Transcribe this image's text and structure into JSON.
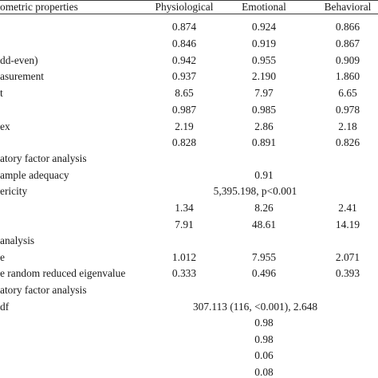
{
  "header": {
    "property": "ometric properties",
    "physiological": "Physiological",
    "emotional": "Emotional",
    "behavioral": "Behavioral"
  },
  "rows": [
    {
      "label": "",
      "phys": "0.874",
      "emo": "0.924",
      "beh": "0.866"
    },
    {
      "label": "",
      "phys": "0.846",
      "emo": "0.919",
      "beh": "0.867"
    },
    {
      "label": "dd-even)",
      "phys": "0.942",
      "emo": "0.955",
      "beh": "0.909"
    },
    {
      "label": "asurement",
      "phys": "0.937",
      "emo": "2.190",
      "beh": "1.860"
    },
    {
      "label": "t",
      "phys": "8.65",
      "emo": "7.97",
      "beh": "6.65"
    },
    {
      "label": "",
      "phys": "0.987",
      "emo": "0.985",
      "beh": "0.978"
    },
    {
      "label": "ex",
      "phys": "2.19",
      "emo": "2.86",
      "beh": "2.18"
    },
    {
      "label": "",
      "phys": "0.828",
      "emo": "0.891",
      "beh": "0.826"
    },
    {
      "label": "atory factor analysis",
      "phys": "",
      "emo": "",
      "beh": ""
    },
    {
      "label": "ample adequacy",
      "span": "0.91"
    },
    {
      "label": "ericity",
      "span": "5,395.198, p<0.001"
    },
    {
      "label": "",
      "phys": "1.34",
      "emo": "8.26",
      "beh": "2.41"
    },
    {
      "label": "",
      "phys": "7.91",
      "emo": "48.61",
      "beh": "14.19"
    },
    {
      "label": "analysis",
      "phys": "",
      "emo": "",
      "beh": ""
    },
    {
      "label": "e",
      "phys": "1.012",
      "emo": "7.955",
      "beh": "2.071"
    },
    {
      "label": "e random reduced eigenvalue",
      "phys": "0.333",
      "emo": "0.496",
      "beh": "0.393"
    },
    {
      "label": "atory factor analysis",
      "phys": "",
      "emo": "",
      "beh": ""
    },
    {
      "label": "df",
      "span": "307.113 (116, <0.001), 2.648"
    },
    {
      "label": "",
      "span": "0.98"
    },
    {
      "label": "",
      "span": "0.98"
    },
    {
      "label": "",
      "span": "0.06"
    },
    {
      "label": "",
      "span": "0.08"
    }
  ]
}
